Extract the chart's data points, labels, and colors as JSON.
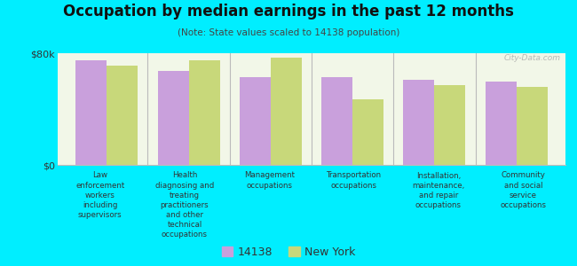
{
  "title": "Occupation by median earnings in the past 12 months",
  "subtitle": "(Note: State values scaled to 14138 population)",
  "background_outer": "#00eeff",
  "background_inner": "#f2f7e8",
  "categories": [
    "Law\nenforcement\nworkers\nincluding\nsupervisors",
    "Health\ndiagnosing and\ntreating\npractitioners\nand other\ntechnical\noccupations",
    "Management\noccupations",
    "Transportation\noccupations",
    "Installation,\nmaintenance,\nand repair\noccupations",
    "Community\nand social\nservice\noccupations"
  ],
  "values_14138": [
    75000,
    67000,
    63000,
    63000,
    61000,
    60000
  ],
  "values_ny": [
    71000,
    75000,
    77000,
    47000,
    57000,
    56000
  ],
  "color_14138": "#c9a0dc",
  "color_ny": "#c8d87a",
  "ylim": [
    0,
    80000
  ],
  "ytick_labels": [
    "$0",
    "$80k"
  ],
  "legend_label_14138": "14138",
  "legend_label_ny": "New York",
  "watermark": "City-Data.com"
}
